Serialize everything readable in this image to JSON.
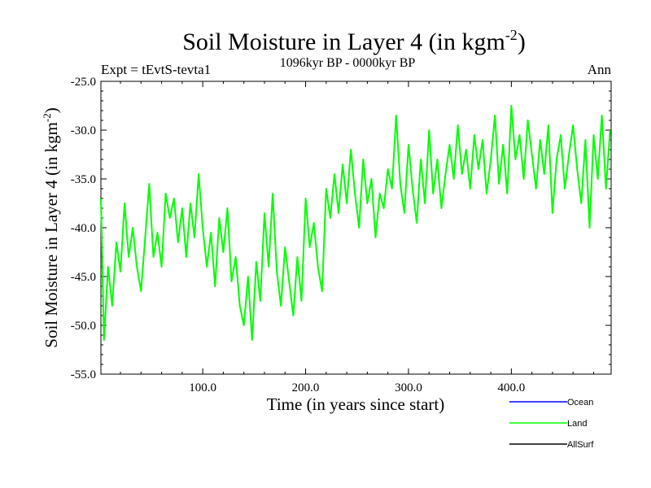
{
  "chart_data": {
    "type": "line",
    "title": "Soil Moisture in Layer 4 (in kgm",
    "title_sup": "-2",
    "title_close": ")",
    "subtitle": "1096kyr BP - 0000kyr BP",
    "left_label": "Expt = tEvtS-tevta1",
    "right_label": "Ann",
    "xlabel": "Time (in years since start)",
    "ylabel": "Soil Moisture in Layer 4 (in kgm",
    "ylabel_sup": "-2",
    "ylabel_close": ")",
    "xlim": [
      1,
      497
    ],
    "ylim": [
      -55,
      -25
    ],
    "xticks": [
      100,
      200,
      300,
      400
    ],
    "xtick_labels": [
      "100.0",
      "200.0",
      "300.0",
      "400.0"
    ],
    "yticks": [
      -25,
      -30,
      -35,
      -40,
      -45,
      -50,
      -55
    ],
    "ytick_labels": [
      "-25.0",
      "-30.0",
      "-35.0",
      "-40.0",
      "-45.0",
      "-50.0",
      "-55.0"
    ],
    "legend": [
      {
        "name": "Ocean",
        "color": "#0000ff"
      },
      {
        "name": "Land",
        "color": "#00ff00"
      },
      {
        "name": "AllSurf",
        "color": "#000000"
      }
    ],
    "series": [
      {
        "name": "Land",
        "color": "#00ff00",
        "x": [
          1,
          4,
          8,
          12,
          16,
          20,
          24,
          28,
          32,
          36,
          40,
          44,
          48,
          52,
          56,
          60,
          64,
          68,
          72,
          76,
          80,
          84,
          88,
          92,
          96,
          100,
          104,
          108,
          112,
          116,
          120,
          124,
          128,
          132,
          136,
          140,
          144,
          148,
          152,
          156,
          160,
          164,
          168,
          172,
          176,
          180,
          184,
          188,
          192,
          196,
          200,
          204,
          208,
          212,
          216,
          220,
          224,
          228,
          232,
          236,
          240,
          244,
          248,
          252,
          256,
          260,
          264,
          268,
          272,
          276,
          280,
          284,
          288,
          292,
          296,
          300,
          304,
          308,
          312,
          316,
          320,
          324,
          328,
          332,
          336,
          340,
          344,
          348,
          352,
          356,
          360,
          364,
          368,
          372,
          376,
          380,
          384,
          388,
          392,
          396,
          400,
          404,
          408,
          412,
          416,
          420,
          424,
          428,
          432,
          436,
          440,
          444,
          448,
          452,
          456,
          460,
          464,
          468,
          472,
          476,
          480,
          484,
          488,
          492,
          496
        ],
        "values": [
          -37.0,
          -51.5,
          -44.0,
          -48.0,
          -41.5,
          -44.5,
          -37.5,
          -43.0,
          -40.0,
          -44.0,
          -46.5,
          -41.0,
          -35.5,
          -43.0,
          -40.5,
          -44.0,
          -36.5,
          -39.0,
          -37.0,
          -41.5,
          -38.0,
          -43.0,
          -37.5,
          -41.0,
          -34.5,
          -40.0,
          -44.0,
          -40.5,
          -46.0,
          -39.0,
          -42.5,
          -38.0,
          -45.5,
          -43.0,
          -48.0,
          -50.0,
          -45.0,
          -51.5,
          -43.5,
          -47.5,
          -38.5,
          -44.0,
          -36.5,
          -44.5,
          -48.0,
          -42.0,
          -45.5,
          -49.0,
          -43.0,
          -47.5,
          -37.0,
          -42.0,
          -39.5,
          -44.0,
          -46.5,
          -36.0,
          -39.0,
          -34.5,
          -38.5,
          -33.5,
          -37.5,
          -32.0,
          -36.5,
          -40.0,
          -33.0,
          -37.5,
          -35.0,
          -41.0,
          -36.5,
          -38.0,
          -34.0,
          -36.0,
          -28.5,
          -35.5,
          -38.5,
          -31.5,
          -36.0,
          -39.5,
          -33.0,
          -37.5,
          -30.0,
          -36.5,
          -33.0,
          -38.0,
          -34.5,
          -31.5,
          -35.0,
          -29.5,
          -34.5,
          -32.0,
          -36.0,
          -30.5,
          -34.0,
          -31.0,
          -36.5,
          -33.0,
          -28.5,
          -35.5,
          -31.5,
          -36.5,
          -27.5,
          -33.0,
          -30.5,
          -35.0,
          -29.0,
          -32.5,
          -36.0,
          -31.0,
          -34.5,
          -29.5,
          -38.5,
          -33.0,
          -30.5,
          -36.0,
          -32.5,
          -29.5,
          -34.0,
          -37.5,
          -31.0,
          -40.0,
          -30.5,
          -35.0,
          -28.5,
          -36.0,
          -30.0
        ]
      }
    ]
  }
}
